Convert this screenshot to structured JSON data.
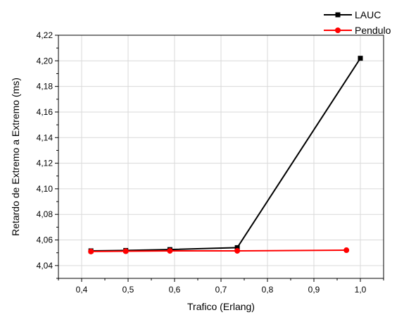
{
  "chart_data": {
    "type": "line",
    "title": "",
    "xlabel": "Trafico (Erlang)",
    "ylabel": "Retardo de Extremo a Extremo (ms)",
    "xlim": [
      0.35,
      1.05
    ],
    "ylim": [
      4.03,
      4.22
    ],
    "xticks": [
      0.4,
      0.5,
      0.6,
      0.7,
      0.8,
      0.9,
      1.0
    ],
    "xtick_labels": [
      "0,4",
      "0,5",
      "0,6",
      "0,7",
      "0,8",
      "0,9",
      "1,0"
    ],
    "yticks": [
      4.04,
      4.06,
      4.08,
      4.1,
      4.12,
      4.14,
      4.16,
      4.18,
      4.2,
      4.22
    ],
    "ytick_labels": [
      "4,04",
      "4,06",
      "4,08",
      "4,10",
      "4,12",
      "4,14",
      "4,16",
      "4,18",
      "4,20",
      "4,22"
    ],
    "grid": true,
    "legend_position": "top-right, outside plot",
    "series": [
      {
        "name": "LAUC",
        "color": "#000000",
        "marker": "square",
        "points": [
          [
            0.42,
            4.0515
          ],
          [
            0.495,
            4.0518
          ],
          [
            0.59,
            4.0525
          ],
          [
            0.735,
            4.054
          ],
          [
            1.0,
            4.202
          ]
        ]
      },
      {
        "name": "Pendulo",
        "color": "#ff0000",
        "marker": "circle",
        "points": [
          [
            0.42,
            4.051
          ],
          [
            0.495,
            4.0512
          ],
          [
            0.59,
            4.0515
          ],
          [
            0.735,
            4.0515
          ],
          [
            0.97,
            4.052
          ]
        ]
      }
    ]
  }
}
